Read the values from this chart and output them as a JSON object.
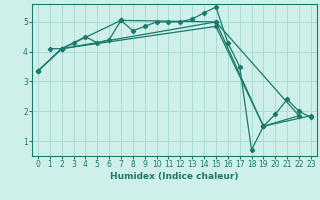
{
  "xlabel": "Humidex (Indice chaleur)",
  "bg_color": "#cff0ea",
  "line_color": "#1a7a6e",
  "grid_color": "#aaddd6",
  "xlim": [
    -0.5,
    23.5
  ],
  "ylim": [
    0.5,
    5.6
  ],
  "yticks": [
    1,
    2,
    3,
    4,
    5
  ],
  "xticks": [
    0,
    1,
    2,
    3,
    4,
    5,
    6,
    7,
    8,
    9,
    10,
    11,
    12,
    13,
    14,
    15,
    16,
    17,
    18,
    19,
    20,
    21,
    22,
    23
  ],
  "lines": [
    {
      "x": [
        1,
        2,
        3,
        4,
        5,
        6,
        7,
        8,
        9,
        10,
        11,
        12,
        13,
        14,
        15,
        16,
        17,
        18,
        19,
        20,
        21,
        22,
        23
      ],
      "y": [
        4.1,
        4.1,
        4.3,
        4.5,
        4.3,
        4.4,
        5.05,
        4.7,
        4.85,
        5.0,
        5.0,
        5.0,
        5.1,
        5.3,
        5.5,
        4.3,
        3.5,
        0.7,
        1.5,
        1.9,
        2.4,
        2.0,
        1.8
      ]
    },
    {
      "x": [
        0,
        2,
        7,
        15,
        19,
        22
      ],
      "y": [
        3.35,
        4.1,
        5.05,
        5.0,
        1.5,
        1.85
      ]
    },
    {
      "x": [
        0,
        2,
        15,
        22
      ],
      "y": [
        3.35,
        4.1,
        5.0,
        1.85
      ]
    },
    {
      "x": [
        0,
        2,
        15,
        19,
        23
      ],
      "y": [
        3.35,
        4.1,
        4.85,
        1.5,
        1.85
      ]
    }
  ]
}
